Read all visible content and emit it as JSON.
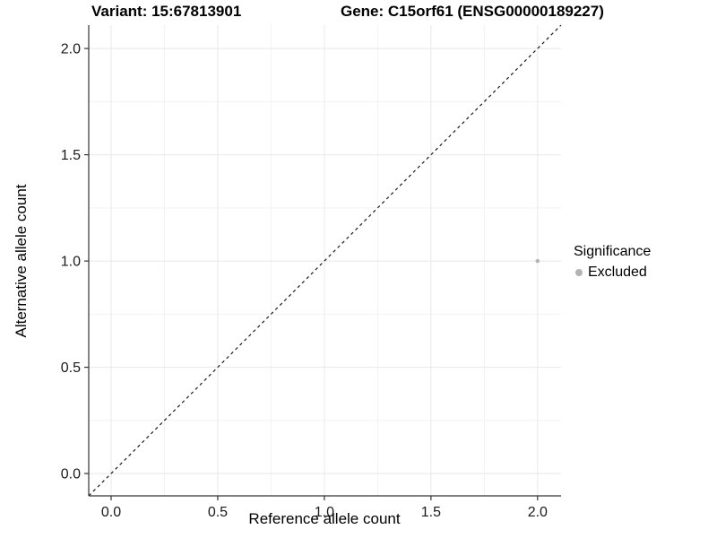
{
  "title": {
    "left": "Variant: 15:67813901",
    "right": "Gene: C15orf61 (ENSG00000189227)"
  },
  "axes": {
    "x_label": "Reference allele count",
    "y_label": "Alternative allele count"
  },
  "legend": {
    "title": "Significance",
    "entries": [
      {
        "label": "Excluded",
        "color": "#b3b3b3",
        "marker": "circle-icon"
      }
    ]
  },
  "chart_data": {
    "type": "scatter",
    "title": "Variant: 15:67813901    Gene: C15orf61 (ENSG00000189227)",
    "xlabel": "Reference allele count",
    "ylabel": "Alternative allele count",
    "xlim": [
      -0.105,
      2.11
    ],
    "ylim": [
      -0.105,
      2.11
    ],
    "x_tick_values": [
      0,
      0.5,
      1,
      1.5,
      2
    ],
    "x_tick_labels": [
      "0.0",
      "0.5",
      "1.0",
      "1.5",
      "2.0"
    ],
    "y_tick_values": [
      0,
      0.5,
      1,
      1.5,
      2
    ],
    "y_tick_labels": [
      "0.0",
      "0.5",
      "1.0",
      "1.5",
      "2.0"
    ],
    "minor_tick_values": [
      0.25,
      0.75,
      1.25,
      1.75
    ],
    "grid": true,
    "legend_position": "right",
    "series": [
      {
        "name": "Excluded",
        "color": "#b3b3b3",
        "points": [
          {
            "x": 2.0,
            "y": 1.0
          }
        ]
      }
    ],
    "reference_line": {
      "kind": "identity y=x",
      "style": "dashed",
      "color": "#1a1a1a"
    }
  },
  "colors": {
    "background": "#ffffff",
    "grid_major": "#e8e8e8",
    "grid_minor": "#f2f2f2",
    "axis_line": "#333333",
    "tick_mark": "#333333",
    "tick_text": "#1a1a1a",
    "point": "#b3b3b3"
  }
}
